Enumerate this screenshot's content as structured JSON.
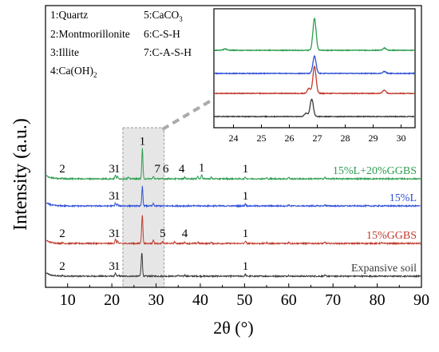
{
  "chart_data": {
    "type": "line",
    "xlabel": "2θ (°)",
    "ylabel": "Intensity (a.u.)",
    "xlim": [
      5,
      90
    ],
    "xticks": [
      10,
      20,
      30,
      40,
      50,
      60,
      70,
      80,
      90
    ],
    "grid": false,
    "legend": {
      "items": [
        {
          "num": "1:",
          "name": "Quartz"
        },
        {
          "num": "2:",
          "name": "Montmorillonite"
        },
        {
          "num": "3:",
          "name": "Illite"
        },
        {
          "num": "4:",
          "name": "Ca(OH)",
          "sub": "2"
        },
        {
          "num": "5:",
          "name": "CaCO",
          "sub": "3"
        },
        {
          "num": "6:",
          "name": "C-S-H"
        },
        {
          "num": "7:",
          "name": "C-A-S-H"
        }
      ]
    },
    "series": [
      {
        "name": "Expansive soil",
        "color": "#3a3a3a",
        "peaks": [
          [
            8.8,
            2
          ],
          [
            20.8,
            6
          ],
          [
            21.6,
            2
          ],
          [
            26.6,
            10
          ],
          [
            26.8,
            50
          ],
          [
            35,
            2.5
          ],
          [
            36.5,
            2.5
          ],
          [
            50.2,
            4
          ],
          [
            60,
            2
          ],
          [
            68.2,
            2
          ]
        ],
        "labels": [
          {
            "text": "2",
            "x": 8.8
          },
          {
            "text": "3",
            "x": 20.0
          },
          {
            "text": "1",
            "x": 21.2
          },
          {
            "text": "1",
            "x": 50.2
          }
        ]
      },
      {
        "name": "15%GGBS",
        "color": "#c0392b",
        "peaks": [
          [
            8.8,
            2
          ],
          [
            20.8,
            10
          ],
          [
            21.3,
            6
          ],
          [
            26.7,
            12
          ],
          [
            26.9,
            65
          ],
          [
            29.4,
            8
          ],
          [
            31.5,
            4
          ],
          [
            34.2,
            4
          ],
          [
            36.5,
            3
          ],
          [
            39.5,
            3
          ],
          [
            42.5,
            3
          ],
          [
            50.2,
            6
          ],
          [
            55,
            2
          ],
          [
            60,
            3
          ],
          [
            68.2,
            3
          ],
          [
            81,
            2
          ]
        ],
        "labels": [
          {
            "text": "2",
            "x": 8.8
          },
          {
            "text": "3",
            "x": 20.0
          },
          {
            "text": "1",
            "x": 21.2
          },
          {
            "text": "5",
            "x": 31.5
          },
          {
            "text": "4",
            "x": 36.5
          },
          {
            "text": "1",
            "x": 50.2
          }
        ]
      },
      {
        "name": "15%L",
        "color": "#3050d8",
        "peaks": [
          [
            20.8,
            5
          ],
          [
            21.3,
            3
          ],
          [
            26.9,
            35
          ],
          [
            29.4,
            4
          ],
          [
            50.2,
            4
          ],
          [
            60,
            2
          ],
          [
            68.2,
            2
          ]
        ],
        "labels": [
          {
            "text": "3",
            "x": 20.0
          },
          {
            "text": "1",
            "x": 21.2
          },
          {
            "text": "1",
            "x": 50.2
          }
        ]
      },
      {
        "name": "15%L+20%GGBS",
        "color": "#2e9e50",
        "peaks": [
          [
            8.8,
            2
          ],
          [
            20.8,
            8
          ],
          [
            21.3,
            5
          ],
          [
            23.7,
            3
          ],
          [
            26.9,
            70
          ],
          [
            29.4,
            5
          ],
          [
            36.5,
            3
          ],
          [
            39.4,
            6
          ],
          [
            40.3,
            10
          ],
          [
            42.5,
            3
          ],
          [
            50.2,
            4
          ],
          [
            55,
            2
          ],
          [
            60,
            3
          ],
          [
            68.2,
            3
          ]
        ],
        "labels": [
          {
            "text": "2",
            "x": 8.8
          },
          {
            "text": "3",
            "x": 20.0
          },
          {
            "text": "1",
            "x": 21.2
          },
          {
            "text": "1",
            "x": 26.9
          },
          {
            "text": "7",
            "x": 30.3
          },
          {
            "text": "6",
            "x": 32.2
          },
          {
            "text": "4",
            "x": 35.8
          },
          {
            "text": "1",
            "x": 40.3
          },
          {
            "text": "1",
            "x": 50.2
          }
        ]
      }
    ],
    "highlight": {
      "xlim": [
        22.5,
        31.8
      ]
    },
    "inset": {
      "xlim": [
        23.3,
        30.5
      ],
      "xticks": [
        24,
        25,
        26,
        27,
        28,
        29,
        30
      ],
      "order": [
        "15%L+20%GGBS",
        "15%L",
        "15%GGBS",
        "Expansive soil"
      ]
    }
  }
}
